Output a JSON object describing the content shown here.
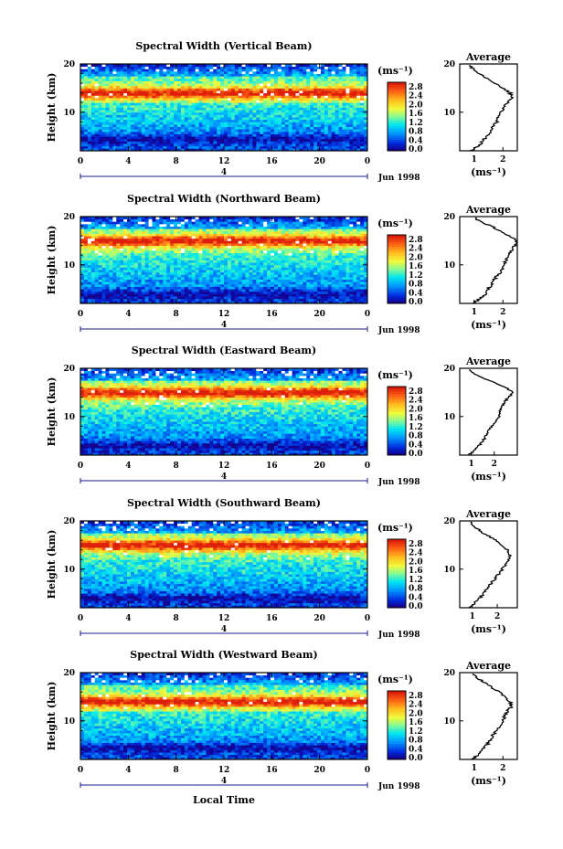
{
  "chart_data": [
    {
      "type": "heatmap",
      "title": "Spectral Width (Vertical Beam)",
      "ylabel": "Height (km)",
      "y_ticks": [
        "20",
        "10"
      ],
      "x_ticks": [
        "0",
        "4",
        "8",
        "12",
        "16",
        "20",
        "0"
      ],
      "day_label": "4",
      "month_label": "Jun 1998",
      "colorbar_unit": "(ms⁻¹)",
      "colorbar_ticks": [
        "2.8",
        "2.4",
        "2.0",
        "1.6",
        "1.2",
        "0.8",
        "0.4",
        "0.0"
      ],
      "zlim": [
        0,
        3.0
      ],
      "xlim": [
        0,
        24
      ],
      "ylim": [
        2,
        20
      ],
      "profile": {
        "title": "Average",
        "y_ticks": [
          "20",
          "10"
        ],
        "x_ticks": [
          "1",
          "2"
        ],
        "xlabel": "(ms⁻¹)",
        "xlim": [
          0.5,
          2.5
        ],
        "height_km": [
          2,
          3,
          4,
          5,
          6,
          7,
          8,
          9,
          10,
          11,
          12,
          13,
          14,
          15,
          16,
          17,
          18,
          19,
          20
        ],
        "width": [
          0.9,
          1.15,
          1.3,
          1.45,
          1.55,
          1.65,
          1.8,
          1.85,
          1.95,
          2.05,
          2.15,
          2.3,
          2.25,
          2.0,
          1.75,
          1.45,
          1.2,
          0.95,
          0.85
        ]
      },
      "maxband_km": 14,
      "lowband_km": 4.5
    },
    {
      "type": "heatmap",
      "title": "Spectral Width (Northward Beam)",
      "ylabel": "Height (km)",
      "y_ticks": [
        "20",
        "10"
      ],
      "x_ticks": [
        "0",
        "4",
        "8",
        "12",
        "16",
        "20",
        "0"
      ],
      "day_label": "4",
      "month_label": "Jun 1998",
      "colorbar_unit": "(ms⁻¹)",
      "colorbar_ticks": [
        "2.8",
        "2.4",
        "2.0",
        "1.6",
        "1.2",
        "0.8",
        "0.4",
        "0.0"
      ],
      "zlim": [
        0,
        3.0
      ],
      "xlim": [
        0,
        24
      ],
      "ylim": [
        2,
        20
      ],
      "profile": {
        "title": "Average",
        "y_ticks": [
          "20",
          "10"
        ],
        "x_ticks": [
          "1",
          "2"
        ],
        "xlabel": "(ms⁻¹)",
        "xlim": [
          0.5,
          2.5
        ],
        "height_km": [
          2,
          3,
          4,
          5,
          6,
          7,
          8,
          9,
          10,
          11,
          12,
          13,
          14,
          15,
          16,
          17,
          18,
          19,
          20
        ],
        "width": [
          0.95,
          1.2,
          1.4,
          1.5,
          1.6,
          1.7,
          1.85,
          1.95,
          2.05,
          2.1,
          2.2,
          2.3,
          2.4,
          2.5,
          2.25,
          1.9,
          1.6,
          1.2,
          0.95
        ]
      },
      "maxband_km": 15,
      "lowband_km": 4.0
    },
    {
      "type": "heatmap",
      "title": "Spectral Width (Eastward Beam)",
      "ylabel": "Height (km)",
      "y_ticks": [
        "20",
        "10"
      ],
      "x_ticks": [
        "0",
        "4",
        "8",
        "12",
        "16",
        "20",
        "0"
      ],
      "day_label": "4",
      "month_label": "Jun 1998",
      "colorbar_unit": "(ms⁻¹)",
      "colorbar_ticks": [
        "2.8",
        "2.4",
        "2.0",
        "1.6",
        "1.2",
        "0.8",
        "0.4",
        "0.0"
      ],
      "zlim": [
        0,
        3.0
      ],
      "xlim": [
        0,
        24
      ],
      "ylim": [
        2,
        20
      ],
      "profile": {
        "title": "Average",
        "y_ticks": [
          "20",
          "10"
        ],
        "x_ticks": [
          "1",
          "2"
        ],
        "xlabel": "(ms⁻¹)",
        "xlim": [
          0.5,
          3.0
        ],
        "height_km": [
          2,
          3,
          4,
          5,
          6,
          7,
          8,
          9,
          10,
          11,
          12,
          13,
          14,
          15,
          16,
          17,
          18,
          19,
          20
        ],
        "width": [
          0.9,
          1.15,
          1.35,
          1.5,
          1.65,
          1.75,
          1.9,
          2.1,
          2.2,
          2.25,
          2.3,
          2.45,
          2.6,
          2.85,
          2.5,
          2.0,
          1.5,
          1.1,
          0.9
        ]
      },
      "maxband_km": 15,
      "lowband_km": 4.0
    },
    {
      "type": "heatmap",
      "title": "Spectral Width (Southward Beam)",
      "ylabel": "Height (km)",
      "y_ticks": [
        "20",
        "10"
      ],
      "x_ticks": [
        "0",
        "4",
        "8",
        "12",
        "16",
        "20",
        "0"
      ],
      "day_label": "4",
      "month_label": "Jun 1998",
      "colorbar_unit": "(ms⁻¹)",
      "colorbar_ticks": [
        "2.8",
        "2.4",
        "2.0",
        "1.6",
        "1.2",
        "0.8",
        "0.4",
        "0.0"
      ],
      "zlim": [
        0,
        3.0
      ],
      "xlim": [
        0,
        24
      ],
      "ylim": [
        2,
        20
      ],
      "profile": {
        "title": "Average",
        "y_ticks": [
          "20",
          "10"
        ],
        "x_ticks": [
          "1",
          "2"
        ],
        "xlabel": "(ms⁻¹)",
        "xlim": [
          0.5,
          2.8
        ],
        "height_km": [
          2,
          3,
          4,
          5,
          6,
          7,
          8,
          9,
          10,
          11,
          12,
          13,
          14,
          15,
          16,
          17,
          18,
          19,
          20
        ],
        "width": [
          0.9,
          1.1,
          1.3,
          1.45,
          1.6,
          1.75,
          1.9,
          2.05,
          2.2,
          2.35,
          2.45,
          2.5,
          2.4,
          2.2,
          1.95,
          1.6,
          1.3,
          1.05,
          0.9
        ]
      },
      "maxband_km": 15,
      "lowband_km": 4.0
    },
    {
      "type": "heatmap",
      "title": "Spectral Width (Westward Beam)",
      "ylabel": "Height (km)",
      "y_ticks": [
        "20",
        "10"
      ],
      "x_ticks": [
        "0",
        "4",
        "8",
        "12",
        "16",
        "20",
        "0"
      ],
      "day_label": "4",
      "month_label": "Jun 1998",
      "xlabel": "Local Time",
      "colorbar_unit": "(ms⁻¹)",
      "colorbar_ticks": [
        "2.8",
        "2.4",
        "2.0",
        "1.6",
        "1.2",
        "0.8",
        "0.4",
        "0.0"
      ],
      "zlim": [
        0,
        3.0
      ],
      "xlim": [
        0,
        24
      ],
      "ylim": [
        2,
        20
      ],
      "profile": {
        "title": "Average",
        "y_ticks": [
          "20",
          "10"
        ],
        "x_ticks": [
          "1",
          "2"
        ],
        "xlabel": "(ms⁻¹)",
        "xlim": [
          0.5,
          2.5
        ],
        "height_km": [
          2,
          3,
          4,
          5,
          6,
          7,
          8,
          9,
          10,
          11,
          12,
          13,
          14,
          15,
          16,
          17,
          18,
          19,
          20
        ],
        "width": [
          0.95,
          1.15,
          1.3,
          1.45,
          1.55,
          1.65,
          1.8,
          1.9,
          2.0,
          2.05,
          2.15,
          2.3,
          2.25,
          2.05,
          1.85,
          1.6,
          1.35,
          1.1,
          0.9
        ]
      },
      "maxband_km": 14,
      "lowband_km": 4.5
    }
  ]
}
